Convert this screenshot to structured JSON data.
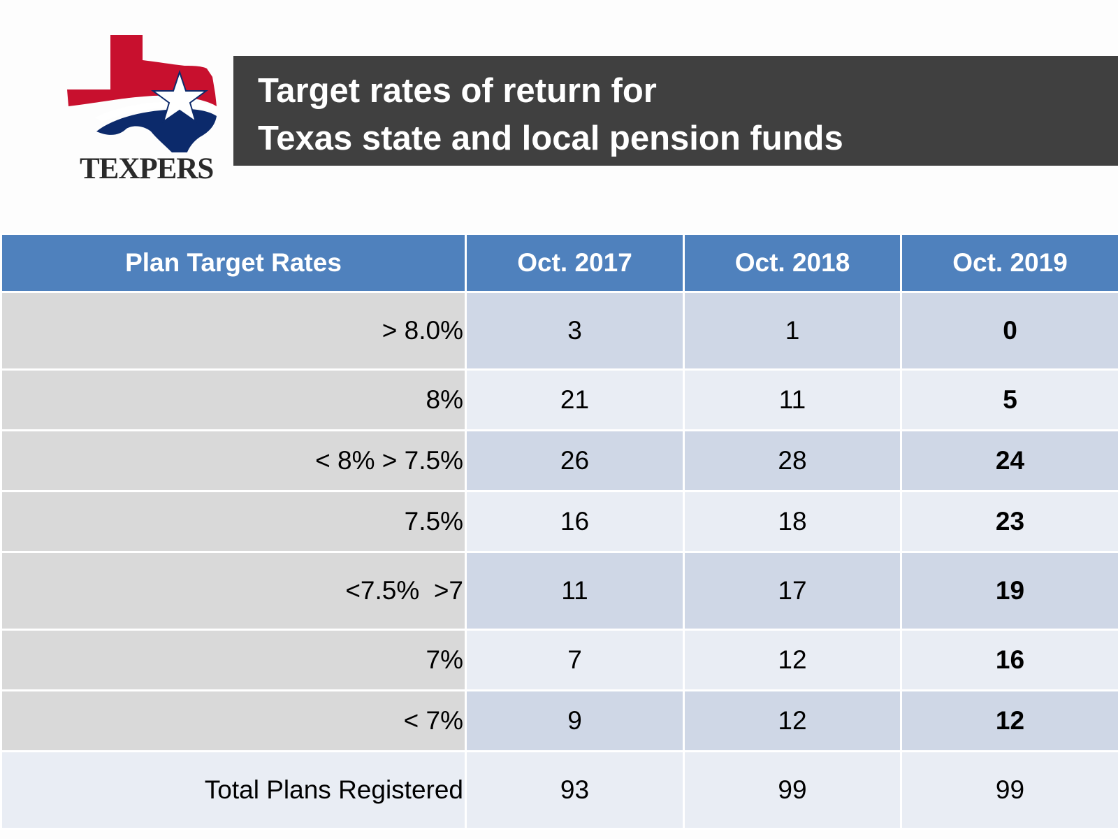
{
  "logo": {
    "text": "TEXPERS"
  },
  "title": {
    "line1": "Target rates of return for",
    "line2": "Texas state and local pension funds"
  },
  "table": {
    "headers": [
      "Plan Target Rates",
      "Oct. 2017",
      "Oct. 2018",
      "Oct. 2019"
    ],
    "rows": [
      {
        "label": "> 8.0%",
        "values": [
          "3",
          "1",
          "0"
        ]
      },
      {
        "label": "8%",
        "values": [
          "21",
          "11",
          "5"
        ]
      },
      {
        "label": "< 8% > 7.5%",
        "values": [
          "26",
          "28",
          "24"
        ]
      },
      {
        "label": "7.5%",
        "values": [
          "16",
          "18",
          "23"
        ]
      },
      {
        "label": "<7.5%  >7",
        "values": [
          "11",
          "17",
          "19"
        ]
      },
      {
        "label": "7%",
        "values": [
          "7",
          "12",
          "16"
        ]
      },
      {
        "label": "< 7%",
        "values": [
          "9",
          "12",
          "12"
        ]
      }
    ],
    "total": {
      "label": "Total Plans Registered",
      "values": [
        "93",
        "99",
        "99"
      ]
    }
  },
  "colors": {
    "header_blue": "#4f81bd",
    "title_bar": "#404040",
    "logo_red": "#c8102e",
    "logo_navy": "#0c2a6b"
  }
}
